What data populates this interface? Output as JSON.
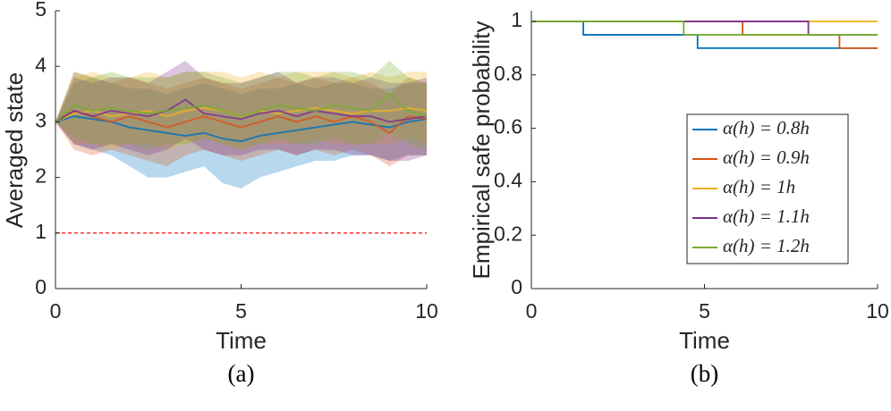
{
  "chart_data": [
    {
      "type": "band-line",
      "xlabel": "Time",
      "ylabel": "Averaged state",
      "caption": "(a)",
      "xlim": [
        0,
        10
      ],
      "xticks": [
        0,
        5,
        10
      ],
      "ylim": [
        0,
        5
      ],
      "yticks": [
        0,
        1,
        2,
        3,
        4,
        5
      ],
      "reference_line": {
        "value": 1,
        "color": "#ff3333"
      },
      "x": [
        0,
        0.5,
        1,
        1.5,
        2,
        2.5,
        3,
        3.5,
        4,
        4.5,
        5,
        5.5,
        6,
        6.5,
        7,
        7.5,
        8,
        8.5,
        9,
        9.5,
        10
      ],
      "series": [
        {
          "color": "#0072bd",
          "values": [
            3,
            3.1,
            3.05,
            3.0,
            2.9,
            2.85,
            2.8,
            2.75,
            2.8,
            2.7,
            2.65,
            2.75,
            2.8,
            2.85,
            2.9,
            2.95,
            3.0,
            2.95,
            2.9,
            3.0,
            3.05
          ],
          "lower": [
            3,
            2.6,
            2.5,
            2.4,
            2.2,
            2.0,
            2.0,
            2.1,
            2.2,
            1.9,
            1.8,
            2.0,
            2.1,
            2.2,
            2.3,
            2.3,
            2.4,
            2.4,
            2.3,
            2.4,
            2.4
          ],
          "upper": [
            3,
            3.7,
            3.8,
            3.7,
            3.6,
            3.6,
            3.5,
            3.6,
            3.7,
            3.6,
            3.5,
            3.6,
            3.6,
            3.7,
            3.6,
            3.7,
            3.7,
            3.6,
            3.6,
            3.7,
            3.7
          ]
        },
        {
          "color": "#d95319",
          "values": [
            3,
            3.2,
            3.1,
            3.0,
            3.1,
            3.0,
            2.9,
            3.0,
            3.1,
            3.0,
            2.9,
            3.0,
            3.1,
            3.0,
            3.1,
            3.0,
            3.1,
            3.0,
            2.8,
            3.1,
            3.05
          ],
          "lower": [
            3,
            2.5,
            2.4,
            2.5,
            2.4,
            2.3,
            2.2,
            2.4,
            2.5,
            2.4,
            2.3,
            2.4,
            2.5,
            2.4,
            2.5,
            2.4,
            2.5,
            2.4,
            2.2,
            2.4,
            2.4
          ],
          "upper": [
            3,
            3.9,
            3.8,
            3.7,
            3.8,
            3.7,
            3.6,
            3.7,
            3.8,
            3.7,
            3.6,
            3.7,
            3.8,
            3.7,
            3.8,
            3.7,
            3.8,
            3.7,
            3.5,
            3.8,
            3.7
          ]
        },
        {
          "color": "#edb120",
          "values": [
            3,
            3.15,
            3.2,
            3.1,
            3.15,
            3.2,
            3.1,
            3.2,
            3.25,
            3.2,
            3.1,
            3.2,
            3.15,
            3.2,
            3.25,
            3.2,
            3.15,
            3.2,
            3.2,
            3.25,
            3.2
          ],
          "lower": [
            3,
            2.6,
            2.6,
            2.5,
            2.6,
            2.6,
            2.5,
            2.6,
            2.7,
            2.6,
            2.5,
            2.6,
            2.6,
            2.6,
            2.7,
            2.6,
            2.6,
            2.6,
            2.6,
            2.7,
            2.6
          ],
          "upper": [
            3,
            3.8,
            3.9,
            3.8,
            3.8,
            3.9,
            3.8,
            3.9,
            3.9,
            3.9,
            3.8,
            3.9,
            3.8,
            3.9,
            3.9,
            3.9,
            3.8,
            3.9,
            3.8,
            3.9,
            3.9
          ]
        },
        {
          "color": "#7e2f8e",
          "values": [
            3,
            3.2,
            3.1,
            3.2,
            3.15,
            3.1,
            3.2,
            3.4,
            3.15,
            3.1,
            3.05,
            3.15,
            3.2,
            3.1,
            3.2,
            3.15,
            3.1,
            3.1,
            3.0,
            3.05,
            3.1
          ],
          "lower": [
            3,
            2.6,
            2.5,
            2.6,
            2.5,
            2.4,
            2.5,
            2.7,
            2.5,
            2.4,
            2.4,
            2.5,
            2.5,
            2.4,
            2.5,
            2.5,
            2.4,
            2.4,
            2.3,
            2.3,
            2.4
          ],
          "upper": [
            3,
            3.8,
            3.7,
            3.8,
            3.8,
            3.7,
            3.9,
            4.1,
            3.8,
            3.7,
            3.7,
            3.8,
            3.9,
            3.7,
            3.8,
            3.8,
            3.7,
            3.8,
            3.7,
            3.7,
            3.8
          ]
        },
        {
          "color": "#77ac30",
          "values": [
            3,
            3.3,
            3.2,
            3.25,
            3.2,
            3.15,
            3.2,
            3.25,
            3.3,
            3.2,
            3.1,
            3.2,
            3.3,
            3.25,
            3.2,
            3.3,
            3.25,
            3.2,
            3.5,
            3.2,
            3.1
          ],
          "lower": [
            3,
            2.7,
            2.6,
            2.6,
            2.6,
            2.5,
            2.6,
            2.6,
            2.7,
            2.6,
            2.5,
            2.6,
            2.7,
            2.6,
            2.6,
            2.7,
            2.6,
            2.6,
            2.8,
            2.6,
            2.5
          ],
          "upper": [
            3,
            3.9,
            3.8,
            3.9,
            3.8,
            3.8,
            3.8,
            3.9,
            3.9,
            3.8,
            3.7,
            3.8,
            3.9,
            3.9,
            3.8,
            3.9,
            3.9,
            3.8,
            4.1,
            3.8,
            3.7
          ]
        }
      ]
    },
    {
      "type": "step",
      "xlabel": "Time",
      "ylabel": "Empirical safe probability",
      "caption": "(b)",
      "xlim": [
        0,
        10
      ],
      "xticks": [
        0,
        5,
        10
      ],
      "ylim": [
        0,
        1.04
      ],
      "yticks": [
        0,
        0.2,
        0.4,
        0.6,
        0.8,
        1
      ],
      "series": [
        {
          "name": "α(h) = 0.8h",
          "color": "#0072bd",
          "x": [
            0,
            1.5,
            4.8,
            10
          ],
          "values": [
            1,
            0.95,
            0.9,
            0.9
          ]
        },
        {
          "name": "α(h) = 0.9h",
          "color": "#d95319",
          "x": [
            0,
            6.1,
            8.9,
            10
          ],
          "values": [
            1,
            0.95,
            0.9,
            0.9
          ]
        },
        {
          "name": "α(h) = 1h",
          "color": "#edb120",
          "x": [
            0,
            10
          ],
          "values": [
            1,
            1
          ]
        },
        {
          "name": "α(h) = 1.1h",
          "color": "#7e2f8e",
          "x": [
            0,
            8.0,
            10
          ],
          "values": [
            1,
            0.95,
            0.95
          ]
        },
        {
          "name": "α(h) = 1.2h",
          "color": "#77ac30",
          "x": [
            0,
            4.4,
            10
          ],
          "values": [
            1,
            0.95,
            0.95
          ]
        }
      ]
    }
  ]
}
